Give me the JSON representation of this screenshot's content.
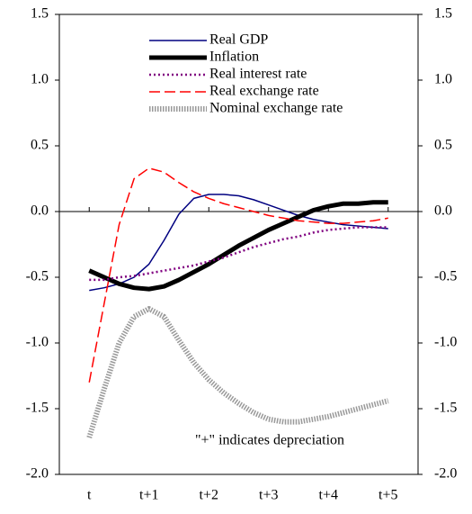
{
  "chart_data": {
    "type": "line",
    "annotation": "\"+\"  indicates depreciation",
    "x": [
      0,
      0.25,
      0.5,
      0.75,
      1,
      1.25,
      1.5,
      1.75,
      2,
      2.25,
      2.5,
      2.75,
      3,
      3.25,
      3.5,
      3.75,
      4,
      4.25,
      4.5,
      4.75,
      5
    ],
    "xlim": [
      -0.5,
      5.5
    ],
    "xticks": [
      {
        "value": 0,
        "label": "t"
      },
      {
        "value": 1,
        "label": "t+1"
      },
      {
        "value": 2,
        "label": "t+2"
      },
      {
        "value": 3,
        "label": "t+3"
      },
      {
        "value": 4,
        "label": "t+4"
      },
      {
        "value": 5,
        "label": "t+5"
      }
    ],
    "ylim": [
      -2.0,
      1.5
    ],
    "yticks": [
      {
        "value": -2,
        "label": "-2.0"
      },
      {
        "value": -1.5,
        "label": "-1.5"
      },
      {
        "value": -1,
        "label": "-1.0"
      },
      {
        "value": -0.5,
        "label": "-0.5"
      },
      {
        "value": 0,
        "label": "0.0"
      },
      {
        "value": 0.5,
        "label": "0.5"
      },
      {
        "value": 1,
        "label": "1.0"
      },
      {
        "value": 1.5,
        "label": "1.5"
      }
    ],
    "y2lim": [
      -2.0,
      1.5
    ],
    "y2ticks": [
      {
        "value": -2,
        "label": "-2.0"
      },
      {
        "value": -1.5,
        "label": "-1.5"
      },
      {
        "value": -1,
        "label": "-1.0"
      },
      {
        "value": -0.5,
        "label": "-0.5"
      },
      {
        "value": 0,
        "label": "0.0"
      },
      {
        "value": 0.5,
        "label": "0.5"
      },
      {
        "value": 1,
        "label": "1.0"
      },
      {
        "value": 1.5,
        "label": "1.5"
      }
    ],
    "series": [
      {
        "name": "Real GDP",
        "color": "#000080",
        "width": 1.5,
        "dash": "solid",
        "values": [
          -0.6,
          -0.58,
          -0.55,
          -0.5,
          -0.4,
          -0.22,
          -0.02,
          0.1,
          0.13,
          0.13,
          0.12,
          0.09,
          0.05,
          0.01,
          -0.03,
          -0.06,
          -0.08,
          -0.1,
          -0.11,
          -0.12,
          -0.13
        ]
      },
      {
        "name": "Inflation",
        "color": "#000000",
        "width": 5,
        "dash": "solid",
        "values": [
          -0.45,
          -0.5,
          -0.55,
          -0.58,
          -0.59,
          -0.57,
          -0.52,
          -0.46,
          -0.4,
          -0.33,
          -0.26,
          -0.2,
          -0.14,
          -0.09,
          -0.04,
          0.01,
          0.04,
          0.06,
          0.06,
          0.07,
          0.07
        ]
      },
      {
        "name": "Real interest rate",
        "color": "#800080",
        "width": 2.5,
        "dash": "dotted",
        "values": [
          -0.52,
          -0.52,
          -0.5,
          -0.49,
          -0.47,
          -0.45,
          -0.43,
          -0.41,
          -0.38,
          -0.35,
          -0.31,
          -0.27,
          -0.24,
          -0.21,
          -0.19,
          -0.16,
          -0.14,
          -0.13,
          -0.12,
          -0.12,
          -0.12
        ]
      },
      {
        "name": "Real exchange rate",
        "color": "#ff0000",
        "width": 1.5,
        "dash": "dashed",
        "values": [
          -1.3,
          -0.7,
          -0.1,
          0.25,
          0.33,
          0.3,
          0.22,
          0.15,
          0.1,
          0.06,
          0.03,
          0.0,
          -0.03,
          -0.05,
          -0.07,
          -0.08,
          -0.09,
          -0.09,
          -0.08,
          -0.07,
          -0.05
        ]
      },
      {
        "name": "Nominal exchange rate",
        "color": "#999999",
        "width": 6,
        "dash": "dense-dotted",
        "values": [
          -1.72,
          -1.35,
          -1.0,
          -0.8,
          -0.74,
          -0.8,
          -0.98,
          -1.15,
          -1.28,
          -1.38,
          -1.46,
          -1.53,
          -1.58,
          -1.6,
          -1.6,
          -1.58,
          -1.56,
          -1.53,
          -1.5,
          -1.47,
          -1.44
        ]
      }
    ]
  }
}
